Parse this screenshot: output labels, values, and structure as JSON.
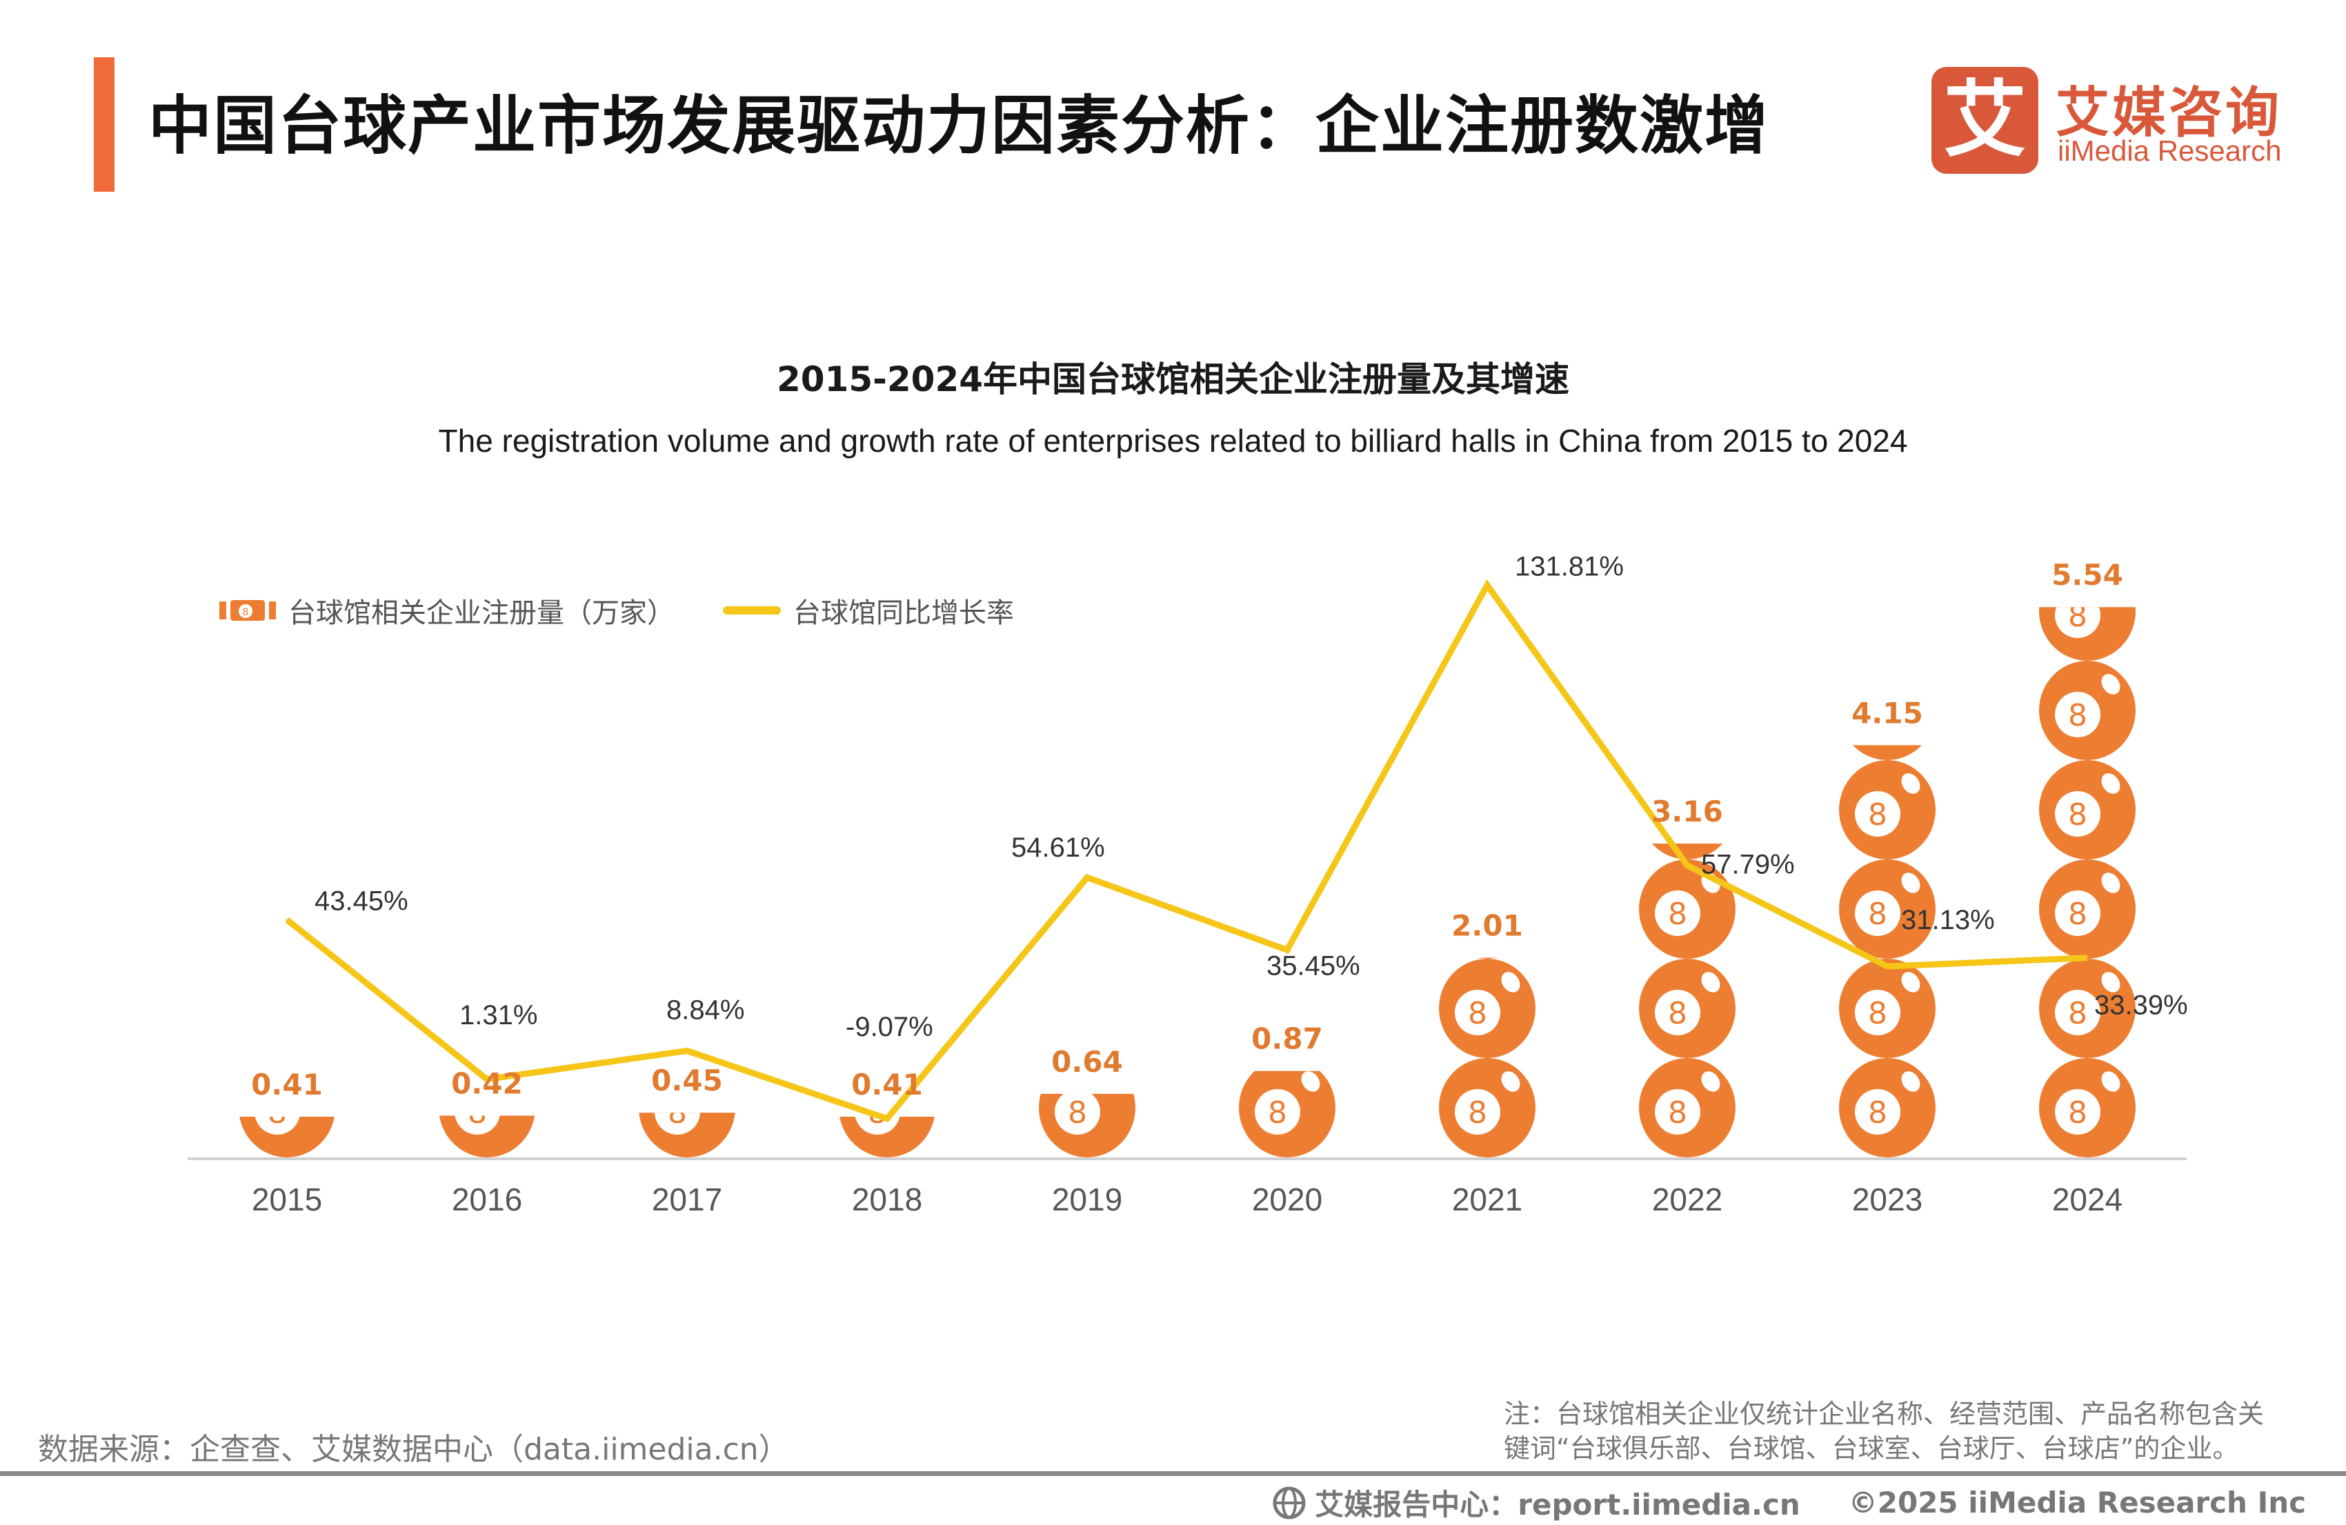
{
  "header": {
    "title": "中国台球产业市场发展驱动力因素分析：企业注册数激增",
    "logo_mark": "艾",
    "logo_cn": "艾媒咨询",
    "logo_en": "iiMedia Research"
  },
  "colors": {
    "accent": "#F26B3A",
    "brand": "#D9583A",
    "ball": "#ED7D31",
    "line": "#F5C518",
    "value_label": "#E07A2E",
    "text_gray": "#777777"
  },
  "chart_data": {
    "type": "bar",
    "title": "2015-2024年中国台球馆相关企业注册量及其增速",
    "subtitle": "The registration volume and growth rate of enterprises related to billiard halls in China from 2015 to 2024",
    "categories": [
      "2015",
      "2016",
      "2017",
      "2018",
      "2019",
      "2020",
      "2021",
      "2022",
      "2023",
      "2024"
    ],
    "xlabel": "",
    "ylabel": "",
    "grid": false,
    "legend_position": "top-left",
    "series": [
      {
        "name": "台球馆相关企业注册量（万家）",
        "type": "pictorial-bar",
        "unit": "万家",
        "axis": "left",
        "values": [
          0.41,
          0.42,
          0.45,
          0.41,
          0.64,
          0.87,
          2.01,
          3.16,
          4.15,
          5.54
        ],
        "labels": [
          "0.41",
          "0.42",
          "0.45",
          "0.41",
          "0.64",
          "0.87",
          "2.01",
          "3.16",
          "4.15",
          "5.54"
        ]
      },
      {
        "name": "台球馆同比增长率",
        "type": "line",
        "unit": "%",
        "axis": "right",
        "values": [
          43.45,
          1.31,
          8.84,
          -9.07,
          54.61,
          35.45,
          131.81,
          57.79,
          31.13,
          33.39
        ],
        "labels": [
          "43.45%",
          "1.31%",
          "8.84%",
          "-9.07%",
          "54.61%",
          "35.45%",
          "131.81%",
          "57.79%",
          "31.13%",
          "33.39%"
        ]
      }
    ]
  },
  "legend": {
    "items": [
      {
        "label": "台球馆相关企业注册量（万家）",
        "icon": "billiard-ball-icon"
      },
      {
        "label": "台球馆同比增长率",
        "icon": "line-swatch-icon"
      }
    ]
  },
  "footer": {
    "source": "数据来源：企查查、艾媒数据中心（data.iimedia.cn）",
    "note_line1": "注：台球馆相关企业仅统计企业名称、经营范围、产品名称包含关",
    "note_line2": "键词“台球俱乐部、台球馆、台球室、台球厅、台球店”的企业。",
    "report_center": "艾媒报告中心：report.iimedia.cn",
    "copyright": "©2025  iiMedia Research  Inc"
  }
}
